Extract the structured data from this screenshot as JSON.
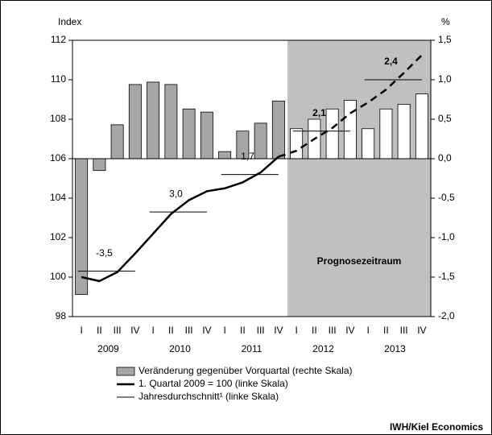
{
  "chart_data": {
    "type": "combo",
    "y_label": "Index",
    "y2_label": "%",
    "categories": [
      "I",
      "II",
      "III",
      "IV",
      "I",
      "II",
      "III",
      "IV",
      "I",
      "II",
      "III",
      "IV",
      "I",
      "II",
      "III",
      "IV",
      "I",
      "II",
      "III",
      "IV"
    ],
    "years": [
      "2009",
      "2010",
      "2011",
      "2012",
      "2013"
    ],
    "ylim": [
      98,
      112
    ],
    "yticks": [
      98,
      100,
      102,
      104,
      106,
      108,
      110,
      112
    ],
    "y2lim": [
      -2.0,
      1.5
    ],
    "y2ticks": [
      {
        "value": -2.0,
        "label": "-2,0"
      },
      {
        "value": -1.5,
        "label": "-1,5"
      },
      {
        "value": -1.0,
        "label": "-1,0"
      },
      {
        "value": -0.5,
        "label": "-0,5"
      },
      {
        "value": 0.0,
        "label": "0,0"
      },
      {
        "value": 0.5,
        "label": "0,5"
      },
      {
        "value": 1.0,
        "label": "1,0"
      },
      {
        "value": 1.5,
        "label": "1,5"
      }
    ],
    "forecast_label": "Prognosezeitraum",
    "forecast_start": 12,
    "forecast_color": "#c0c0c0",
    "series": [
      {
        "name": "Veränderung gegenüber Vorquartal (rechte Skala)",
        "type": "bar",
        "axis": "y2",
        "color": "#a6a6a6",
        "forecast_color": "#ffffff",
        "values": [
          -1.72,
          -0.15,
          0.43,
          0.94,
          0.97,
          0.94,
          0.63,
          0.59,
          0.09,
          0.35,
          0.45,
          0.73,
          0.38,
          0.5,
          0.63,
          0.74,
          0.38,
          0.63,
          0.69,
          0.82
        ]
      },
      {
        "name": "1. Quartal 2009 = 100 (linke Skala)",
        "type": "line",
        "axis": "y",
        "color": "#000000",
        "dash_from": 11,
        "values": [
          100.0,
          99.8,
          100.25,
          101.2,
          102.2,
          103.2,
          103.9,
          104.35,
          104.5,
          104.8,
          105.3,
          106.1,
          106.4,
          107.0,
          107.55,
          108.3,
          108.85,
          109.5,
          110.35,
          111.25
        ]
      }
    ],
    "annual": {
      "name": "Jahresdurchschnitt¹ (linke Skala)",
      "color": "#000000",
      "values": [
        100.3,
        103.3,
        105.2,
        107.4,
        110.0
      ],
      "labels": [
        "-3,5",
        "3,0",
        "1,7",
        "2,1",
        "2,4"
      ]
    },
    "source": "IWH/Kiel Economics"
  }
}
